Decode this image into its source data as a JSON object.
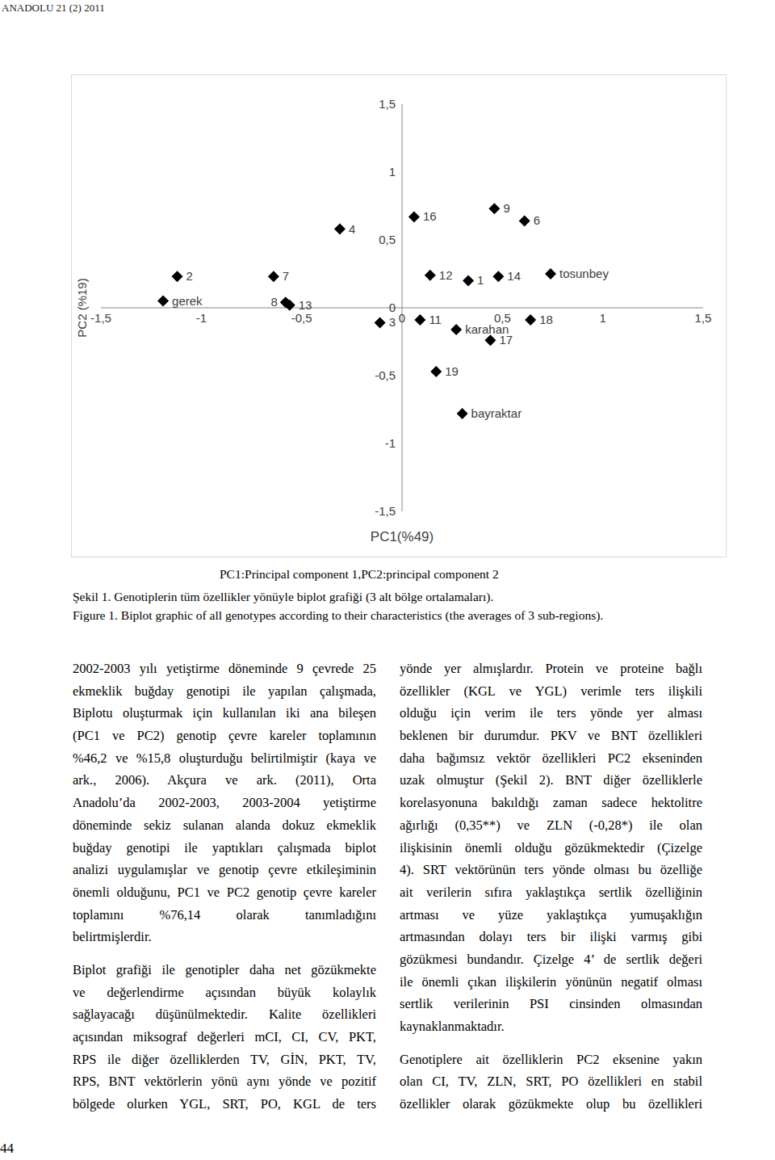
{
  "header": "ANADOLU 21 (2) 2011",
  "chart_data": {
    "type": "scatter",
    "x_label": "PC1(%49)",
    "y_label": "PC2 (%19)",
    "note": "PC1:Principal component 1,PC2:principal component 2",
    "marker": "diamond",
    "color": "#000000",
    "labels": [
      "4",
      "16",
      "9",
      "6",
      "2",
      "7",
      "12",
      "1",
      "14",
      "tosunbey",
      "gerek",
      "8",
      "13",
      "3",
      "11",
      "karahan",
      "18",
      "17",
      "19",
      "bayraktar"
    ],
    "x": [
      -0.31,
      0.06,
      0.46,
      0.61,
      -1.12,
      -0.64,
      0.14,
      0.33,
      0.48,
      0.74,
      -1.19,
      -0.58,
      -0.56,
      -0.11,
      0.09,
      0.27,
      0.64,
      0.44,
      0.17,
      0.3
    ],
    "y": [
      0.58,
      0.67,
      0.73,
      0.64,
      0.23,
      0.23,
      0.24,
      0.2,
      0.23,
      0.25,
      0.05,
      0.04,
      0.02,
      -0.11,
      -0.09,
      -0.16,
      -0.09,
      -0.24,
      -0.47,
      -0.78
    ],
    "xlim": [
      -1.5,
      1.5
    ],
    "ylim": [
      -1.5,
      1.5
    ],
    "xticks": [
      {
        "value": -1.5,
        "label": "-1,5"
      },
      -1,
      {
        "value": -0.5,
        "label": "-0,5"
      },
      0,
      {
        "value": 0.5,
        "label": "0,5"
      },
      1,
      {
        "value": 1.5,
        "label": "1,5"
      }
    ],
    "yticks": [
      {
        "value": -1.5,
        "label": "-1,5"
      },
      -1,
      {
        "value": -0.5,
        "label": "-0,5"
      },
      0,
      {
        "value": 0.5,
        "label": "0,5"
      },
      1,
      {
        "value": 1.5,
        "label": "1,5"
      }
    ]
  },
  "caption_tr": "Şekil 1. Genotiplerin tüm özellikler yönüyle biplot grafiği (3 alt bölge ortalamaları).",
  "caption_en": "Figure 1. Biplot graphic of all genotypes according to their characteristics (the averages of 3 sub-regions).",
  "columns": [
    [
      [
        "2002-2003 yılı yetiştirme döneminde 9 çevrede 25",
        "ekmeklik buğday genotipi ile yapılan çalışmada,",
        "Biplotu oluşturmak için kullanılan iki ana bileşen",
        "(PC1 ve PC2) genotip çevre kareler toplamının",
        "%46,2 ve %15,8 oluşturduğu belirtilmiştir (kaya ve",
        "ark., 2006). Akçura ve ark. (2011), Orta",
        "Anadolu’da 2002-2003, 2003-2004 yetiştirme",
        "döneminde sekiz sulanan alanda dokuz ekmeklik",
        "buğday genotipi ile yaptıkları çalışmada biplot",
        "analizi uygulamışlar ve genotip çevre etkileşiminin",
        "önemli olduğunu, PC1 ve PC2 genotip çevre kareler",
        "toplamını %76,14 olarak tanımladığını",
        "belirtmişlerdir."
      ],
      [
        "Biplot grafiği ile genotipler daha net gözükmekte",
        "ve değerlendirme açısından büyük kolaylık",
        "sağlayacağı düşünülmektedir. Kalite özellikleri",
        "açısından miksograf değerleri mCI, CI, CV, PKT,",
        "RPS ile diğer özelliklerden TV, GİN, PKT, TV,",
        "RPS, BNT vektörlerin yönü aynı yönde ve pozitif",
        "bölgede olurken YGL, SRT, PO, KGL de ters"
      ]
    ],
    [
      [
        "yönde yer almışlardır. Protein ve proteine bağlı",
        "özellikler (KGL ve YGL) verimle ters ilişkili",
        "olduğu için verim ile ters yönde yer alması",
        "beklenen bir durumdur. PKV ve BNT özellikleri",
        "daha bağımsız vektör özellikleri PC2 ekseninden",
        "uzak olmuştur (Şekil 2). BNT diğer özelliklerle",
        "korelasyonuna bakıldığı zaman sadece hektolitre",
        "ağırlığı (0,35**) ve ZLN (-0,28*) ile olan",
        "ilişkisinin önemli olduğu gözükmektedir (Çizelge",
        "4). SRT vektörünün ters yönde olması bu özelliğe",
        "ait verilerin sıfıra yaklaştıkça sertlik özelliğinin",
        "artması ve yüze yaklaştıkça yumuşaklığın",
        "artmasından dolayı ters bir ilişki varmış gibi",
        "gözükmesi bundandır. Çizelge 4’ de sertlik değeri",
        "ile önemli çıkan ilişkilerin yönünün negatif olması",
        "sertlik verilerinin PSI cinsinden olmasından",
        "kaynaklanmaktadır."
      ],
      [
        "Genotiplere ait özelliklerin PC2 eksenine yakın",
        "olan CI, TV, ZLN, SRT, PO özellikleri en stabil",
        "özellikler olarak gözükmekte olup bu özellikleri"
      ]
    ]
  ],
  "page_number": "44"
}
